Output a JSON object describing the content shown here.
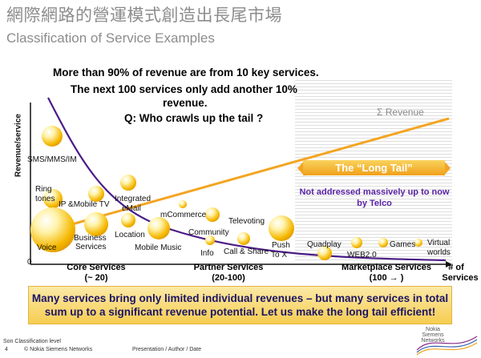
{
  "title_cn": "網際網路的營運模式創造出長尾市場",
  "subtitle": "Classification of Service Examples",
  "statements": {
    "line1": "More than 90% of revenue are from 10 key services.",
    "line2": "The next 100 services only add another 10%",
    "line3": "revenue.",
    "question": "Q: Who crawls up the tail ?"
  },
  "axis": {
    "y_label": "Revenue/service",
    "origin": "0",
    "core": "Core Services",
    "core_sub": "(~ 20)",
    "partner": "Partner Services",
    "partner_sub": "(20-100)",
    "market": "Marketplace Services",
    "market_sub": "(100 → )",
    "num_services": "# of",
    "num_services2": "Services"
  },
  "revenue_label": "Σ Revenue",
  "long_tail_label": "The “Long Tail”",
  "not_addressed": "Not addressed massively up to now by Telco",
  "services": {
    "sms": "SMS/MMS/IM",
    "ring1": "Ring",
    "ring2": "tones",
    "ipmobile": "IP &Mobile TV",
    "integrated1": "Integrated",
    "integrated2": "eMail",
    "voice": "Voice",
    "business1": "Business",
    "business2": "Services",
    "location": "Location",
    "mobile_music": "Mobile Music",
    "mcommerce": "mCommerce",
    "televoting": "Televoting",
    "community": "Community",
    "info": "Info",
    "callshare": "Call & Share",
    "push1": "Push",
    "push2": "To X",
    "quadplay": "Quadplay",
    "web2": "WEB2.0",
    "games": "Games",
    "virtual1": "Virtual",
    "virtual2": "worlds"
  },
  "bottom_message": "Many services bring only limited individual revenues – but many services in total sum up to a significant revenue potential. Let us make the long tail efficient!",
  "footer": {
    "classification": "Son Classification level",
    "page": "4",
    "copyright": "© Nokia Siemens Networks",
    "presentation": "Presentation / Author / Date",
    "logo": "Nokia Siemens Networks"
  },
  "colors": {
    "curve": "#4b1c87",
    "revenue_line": "#f3a522",
    "bubble": "#f5b800",
    "text_purple": "#5a24a6"
  }
}
